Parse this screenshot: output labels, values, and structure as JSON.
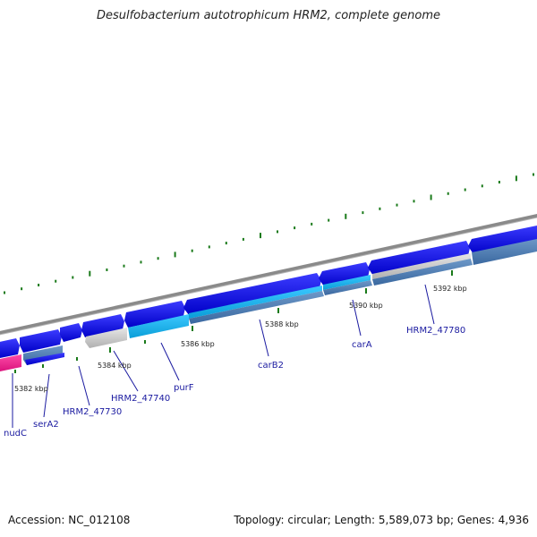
{
  "title": "Desulfobacterium autotrophicum HRM2, complete genome",
  "footer": {
    "accession": "Accession: NC_012108",
    "summary": "Topology: circular; Length: 5,589,073 bp; Genes: 4,936"
  },
  "colors": {
    "backbone": "#8a8a8a",
    "forward_gene": "#0000ee",
    "reverse_gene": "#4a78b0",
    "pseudo_gene": "#c8c8c8",
    "highlight_gene": "#1ab2f0",
    "pink_gene": "#ee1a8a",
    "gc_ticks": "#1a7a1a",
    "gene_label": "#1a1aa0",
    "tick_label": "#222222"
  },
  "tick_labels": [
    "5382 kbp",
    "5384 kbp",
    "5386 kbp",
    "5388 kbp",
    "5390 kbp",
    "5392 kbp"
  ],
  "gene_labels": [
    "nudC",
    "serA2",
    "HRM2_47730",
    "HRM2_47740",
    "purF",
    "carB2",
    "carA",
    "HRM2_47780"
  ]
}
